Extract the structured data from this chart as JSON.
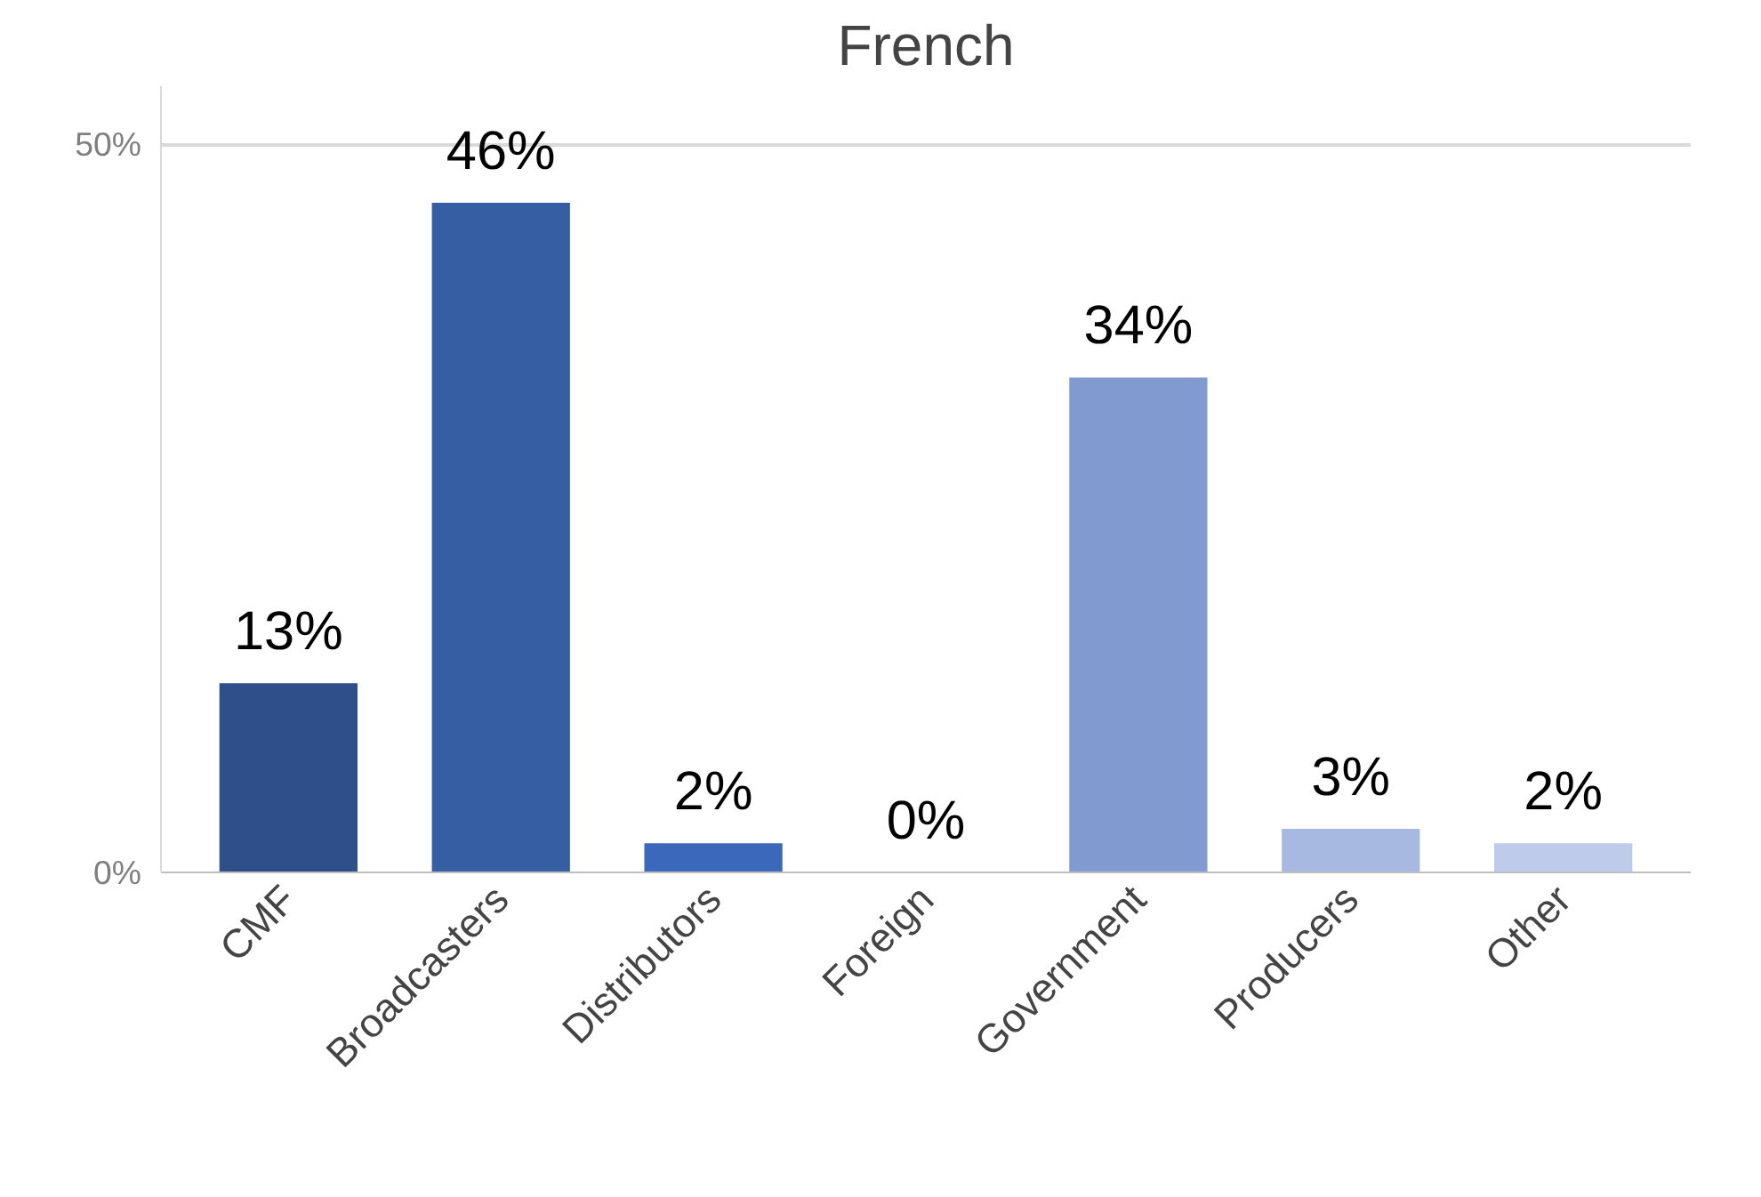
{
  "chart_data": {
    "type": "bar",
    "title": "French",
    "categories": [
      "CMF",
      "Broadcasters",
      "Distributors",
      "Foreign",
      "Government",
      "Producers",
      "Other"
    ],
    "values": [
      13,
      46,
      2,
      0,
      34,
      3,
      2
    ],
    "colors": [
      "#2f4f8a",
      "#365fa3",
      "#3b68ba",
      "#3b68ba",
      "#819bd1",
      "#a8b9e1",
      "#bfcbea"
    ],
    "value_labels": [
      "13%",
      "46%",
      "2%",
      "0%",
      "34%",
      "3%",
      "2%"
    ],
    "ylim": [
      0,
      54
    ],
    "yticks": [
      {
        "value": 0,
        "label": "0%"
      },
      {
        "value": 50,
        "label": "50%"
      }
    ],
    "grid": "y"
  }
}
